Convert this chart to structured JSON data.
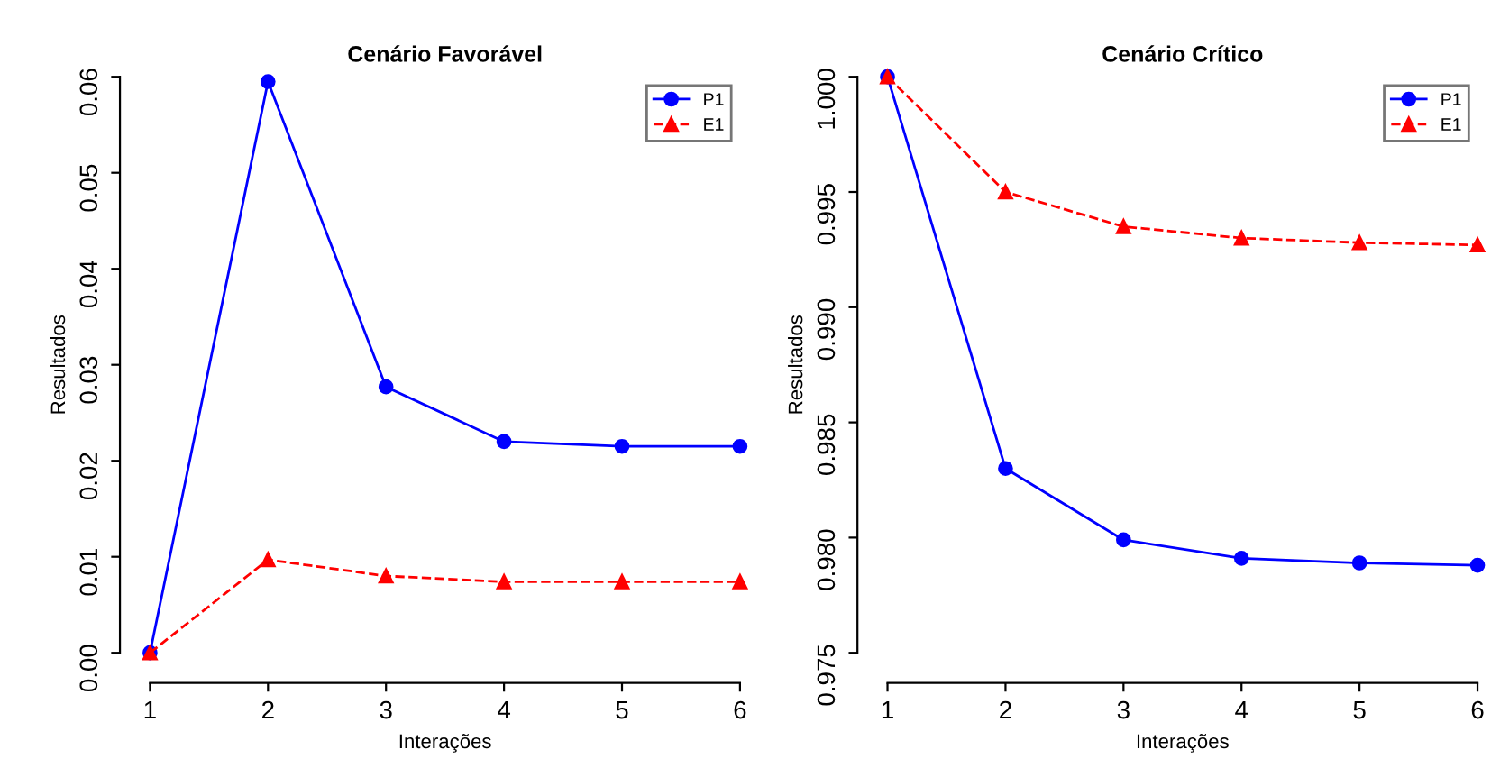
{
  "chart_data": [
    {
      "type": "line",
      "title": "Cenário Favorável",
      "xlabel": "Interações",
      "ylabel": "Resultados",
      "x": [
        1,
        2,
        3,
        4,
        5,
        6
      ],
      "series": [
        {
          "name": "P1",
          "color": "#0000ff",
          "marker": "circle",
          "line_style": "solid",
          "values": [
            0.0,
            0.0595,
            0.0277,
            0.022,
            0.0215,
            0.0215
          ]
        },
        {
          "name": "E1",
          "color": "#ff0000",
          "marker": "triangle",
          "line_style": "dashed",
          "values": [
            0.0,
            0.0097,
            0.008,
            0.0074,
            0.0074,
            0.0074
          ]
        }
      ],
      "xlim": [
        1,
        6
      ],
      "xticks": [
        1,
        2,
        3,
        4,
        5,
        6
      ],
      "ylim": [
        0,
        0.06
      ],
      "yticks": [
        {
          "value": 0,
          "label": "0.00"
        },
        {
          "value": 0.01,
          "label": "0.01"
        },
        {
          "value": 0.02,
          "label": "0.02"
        },
        {
          "value": 0.03,
          "label": "0.03"
        },
        {
          "value": 0.04,
          "label": "0.04"
        },
        {
          "value": 0.05,
          "label": "0.05"
        },
        {
          "value": 0.06,
          "label": "0.06"
        }
      ],
      "grid": false,
      "legend": "top right"
    },
    {
      "type": "line",
      "title": "Cenário Crítico",
      "xlabel": "Interações",
      "ylabel": "Resultados",
      "x": [
        1,
        2,
        3,
        4,
        5,
        6
      ],
      "series": [
        {
          "name": "P1",
          "color": "#0000ff",
          "marker": "circle",
          "line_style": "solid",
          "values": [
            1.0,
            0.983,
            0.9799,
            0.9791,
            0.9789,
            0.9788
          ]
        },
        {
          "name": "E1",
          "color": "#ff0000",
          "marker": "triangle",
          "line_style": "dashed",
          "values": [
            1.0,
            0.995,
            0.9935,
            0.993,
            0.9928,
            0.9927
          ]
        }
      ],
      "xlim": [
        1,
        6
      ],
      "xticks": [
        1,
        2,
        3,
        4,
        5,
        6
      ],
      "ylim": [
        0.975,
        1.0
      ],
      "yticks": [
        {
          "value": 0.975,
          "label": "0.975"
        },
        {
          "value": 0.98,
          "label": "0.980"
        },
        {
          "value": 0.985,
          "label": "0.985"
        },
        {
          "value": 0.99,
          "label": "0.990"
        },
        {
          "value": 0.995,
          "label": "0.995"
        },
        {
          "value": 1.0,
          "label": "1.000"
        }
      ],
      "grid": false,
      "legend": "top right"
    }
  ]
}
